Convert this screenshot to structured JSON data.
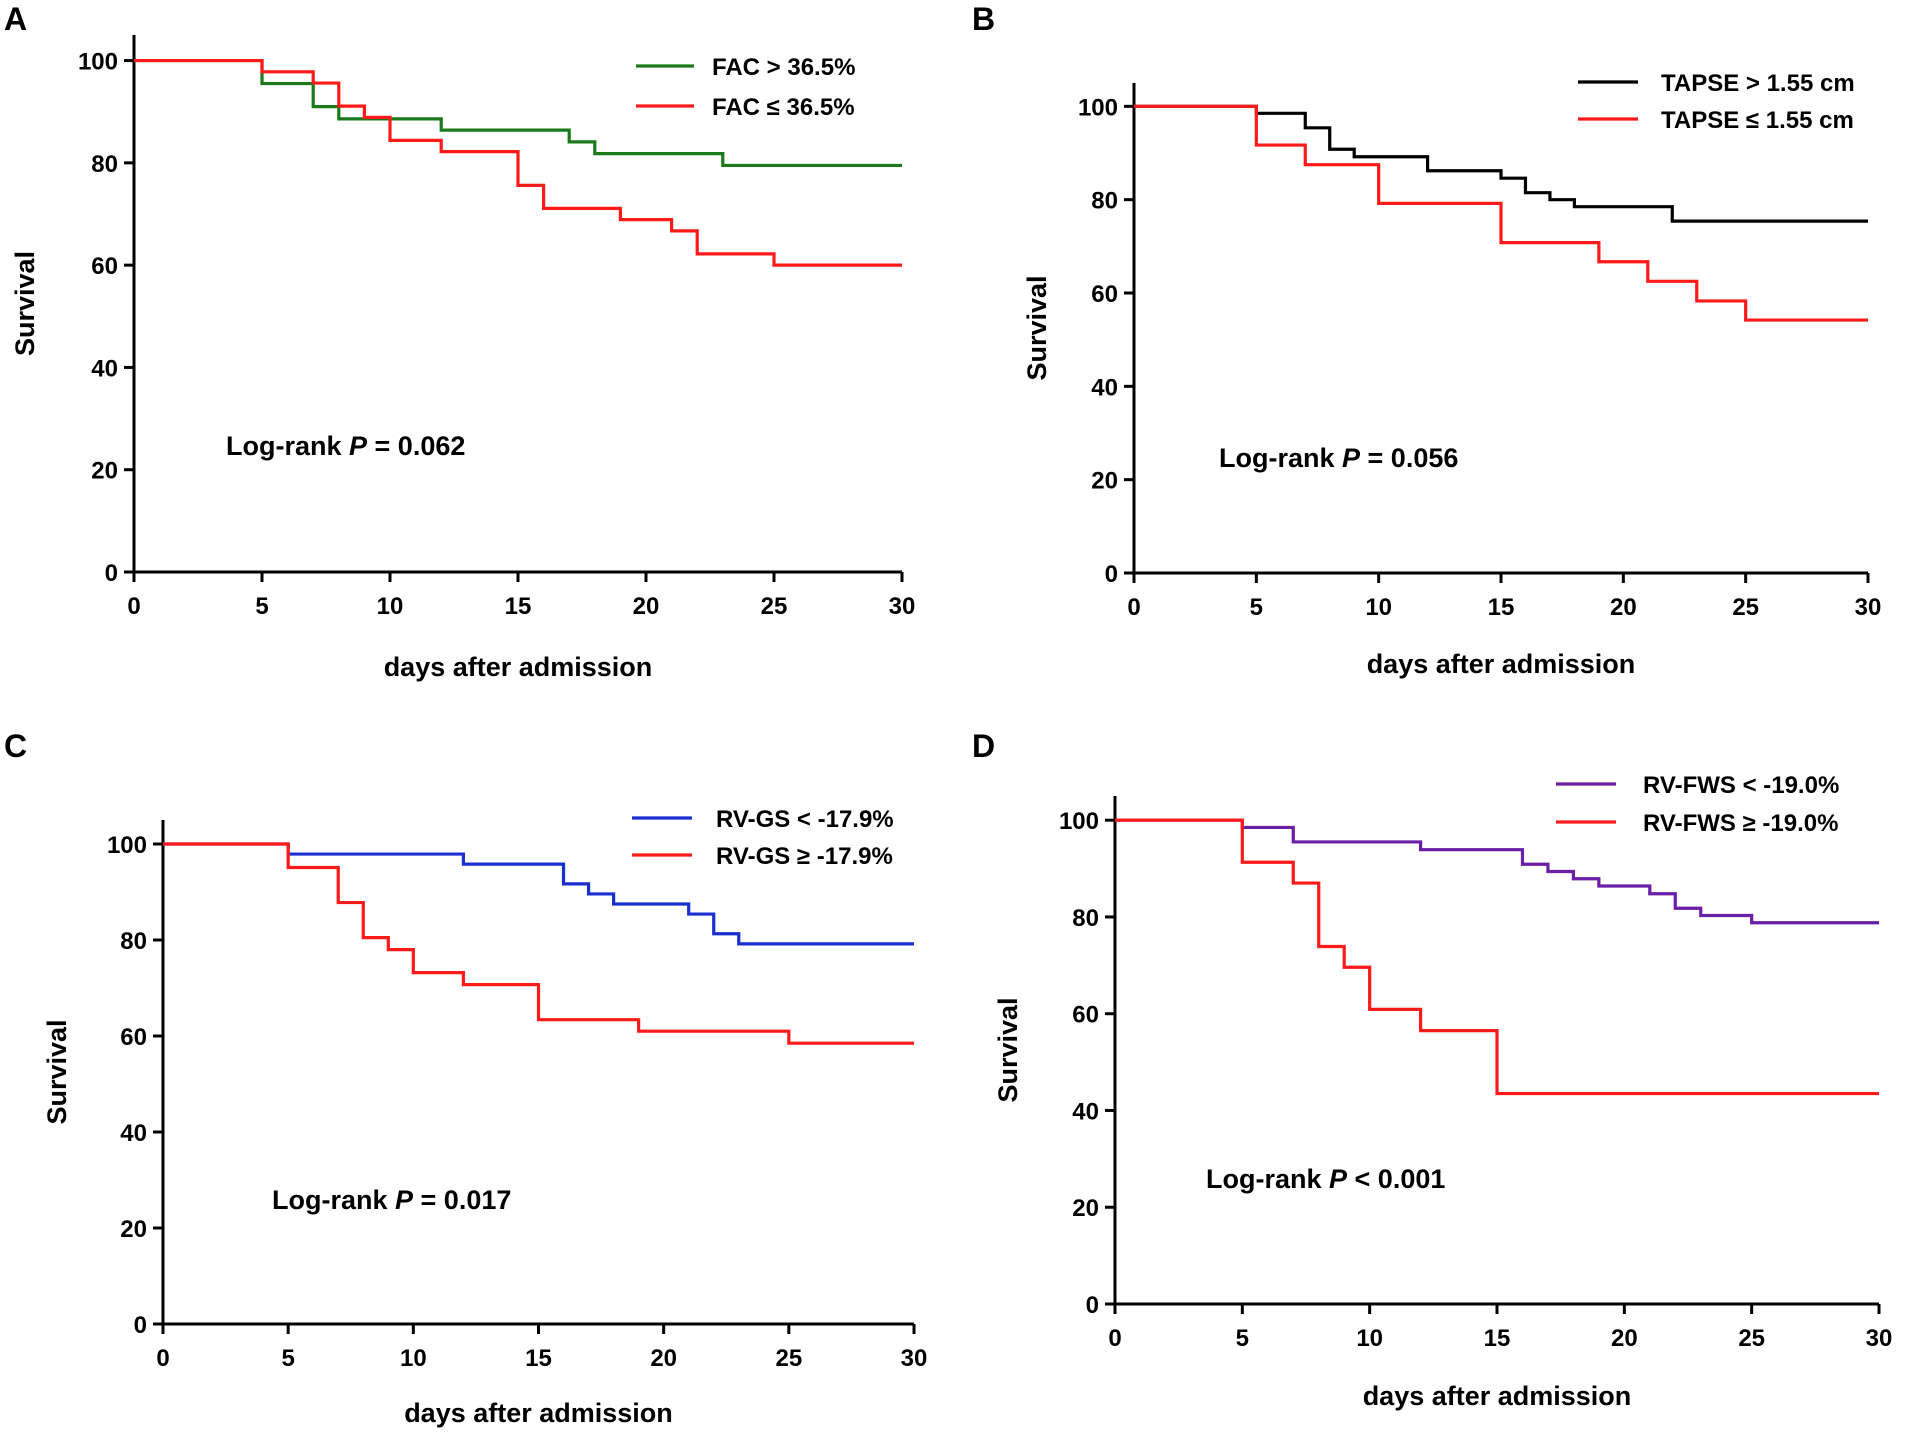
{
  "chart_data": [
    {
      "type": "line",
      "step": true,
      "panel": "A",
      "title": "",
      "xlabel": "days after admission",
      "ylabel": "Survival",
      "xlim": [
        0,
        30
      ],
      "ylim": [
        0,
        105
      ],
      "x_ticks": [
        0,
        5,
        10,
        15,
        20,
        25,
        30
      ],
      "y_ticks": [
        0,
        20,
        40,
        60,
        80,
        100
      ],
      "legend_position": "top-right",
      "annotation": {
        "prefix": "Log-rank ",
        "italic": "P",
        "suffix": " = 0.062"
      },
      "series": [
        {
          "name": "FAC > 36.5%",
          "color": "#1a7a1a",
          "x": [
            0,
            5,
            7,
            8,
            12,
            17,
            18,
            23,
            30
          ],
          "y": [
            100,
            95.5,
            91,
            88.6,
            86.4,
            84.1,
            81.8,
            79.5,
            79.5
          ]
        },
        {
          "name": "FAC ≤ 36.5%",
          "color": "#ff1a1a",
          "x": [
            0,
            5,
            7,
            8,
            9,
            10,
            12,
            15,
            16,
            19,
            21,
            22,
            25,
            30
          ],
          "y": [
            100,
            97.8,
            95.6,
            91.1,
            88.9,
            84.4,
            82.2,
            75.6,
            71.1,
            68.9,
            66.7,
            62.2,
            60,
            60
          ]
        }
      ]
    },
    {
      "type": "line",
      "step": true,
      "panel": "B",
      "title": "",
      "xlabel": "days after admission",
      "ylabel": "Survival",
      "xlim": [
        0,
        30
      ],
      "ylim": [
        0,
        105
      ],
      "x_ticks": [
        0,
        5,
        10,
        15,
        20,
        25,
        30
      ],
      "y_ticks": [
        0,
        20,
        40,
        60,
        80,
        100
      ],
      "legend_position": "top-right",
      "annotation": {
        "prefix": "Log-rank ",
        "italic": "P",
        "suffix": " = 0.056"
      },
      "series": [
        {
          "name": "TAPSE > 1.55 cm",
          "color": "#000000",
          "x": [
            0,
            5,
            7,
            8,
            9,
            12,
            15,
            16,
            17,
            18,
            22,
            30
          ],
          "y": [
            100,
            98.5,
            95.4,
            90.8,
            89.2,
            86.2,
            84.6,
            81.5,
            80,
            78.5,
            75.4,
            75.4
          ]
        },
        {
          "name": "TAPSE ≤ 1.55 cm",
          "color": "#ff1a1a",
          "x": [
            0,
            5,
            7,
            10,
            15,
            19,
            21,
            23,
            25,
            30
          ],
          "y": [
            100,
            91.7,
            87.5,
            79.2,
            70.8,
            66.7,
            62.5,
            58.3,
            54.2,
            54.2
          ]
        }
      ]
    },
    {
      "type": "line",
      "step": true,
      "panel": "C",
      "title": "",
      "xlabel": "days after admission",
      "ylabel": "Survival",
      "xlim": [
        0,
        30
      ],
      "ylim": [
        0,
        105
      ],
      "x_ticks": [
        0,
        5,
        10,
        15,
        20,
        25,
        30
      ],
      "y_ticks": [
        0,
        20,
        40,
        60,
        80,
        100
      ],
      "legend_position": "top-right",
      "annotation": {
        "prefix": "Log-rank ",
        "italic": "P",
        "suffix": " = 0.017"
      },
      "series": [
        {
          "name": "RV-GS < -17.9%",
          "color": "#1a2fd0",
          "x": [
            0,
            5,
            12,
            16,
            17,
            18,
            21,
            22,
            23,
            30
          ],
          "y": [
            100,
            97.9,
            95.8,
            91.7,
            89.6,
            87.5,
            85.4,
            81.3,
            79.2,
            79.2
          ]
        },
        {
          "name": "RV-GS ≥ -17.9%",
          "color": "#ff1a1a",
          "x": [
            0,
            5,
            7,
            8,
            9,
            10,
            12,
            15,
            19,
            25,
            30
          ],
          "y": [
            100,
            95.1,
            87.8,
            80.5,
            78,
            73.2,
            70.7,
            63.4,
            61,
            58.5,
            58.5
          ]
        }
      ]
    },
    {
      "type": "line",
      "step": true,
      "panel": "D",
      "title": "",
      "xlabel": "days after admission",
      "ylabel": "Survival",
      "xlim": [
        0,
        30
      ],
      "ylim": [
        0,
        105
      ],
      "x_ticks": [
        0,
        5,
        10,
        15,
        20,
        25,
        30
      ],
      "y_ticks": [
        0,
        20,
        40,
        60,
        80,
        100
      ],
      "legend_position": "top-right",
      "annotation": {
        "prefix": "Log-rank ",
        "italic": "P",
        "suffix": " < 0.001"
      },
      "series": [
        {
          "name": "RV-FWS < -19.0%",
          "color": "#6a1fa6",
          "x": [
            0,
            5,
            7,
            12,
            16,
            17,
            18,
            19,
            21,
            22,
            23,
            25,
            30
          ],
          "y": [
            100,
            98.5,
            95.5,
            93.9,
            90.9,
            89.4,
            87.9,
            86.4,
            84.8,
            81.8,
            80.3,
            78.8,
            78.8
          ]
        },
        {
          "name": "RV-FWS ≥ -19.0%",
          "color": "#ff1a1a",
          "x": [
            0,
            5,
            7,
            8,
            9,
            10,
            12,
            15,
            30
          ],
          "y": [
            100,
            91.3,
            87,
            73.9,
            69.6,
            60.9,
            56.5,
            43.5,
            43.5
          ]
        }
      ]
    }
  ]
}
